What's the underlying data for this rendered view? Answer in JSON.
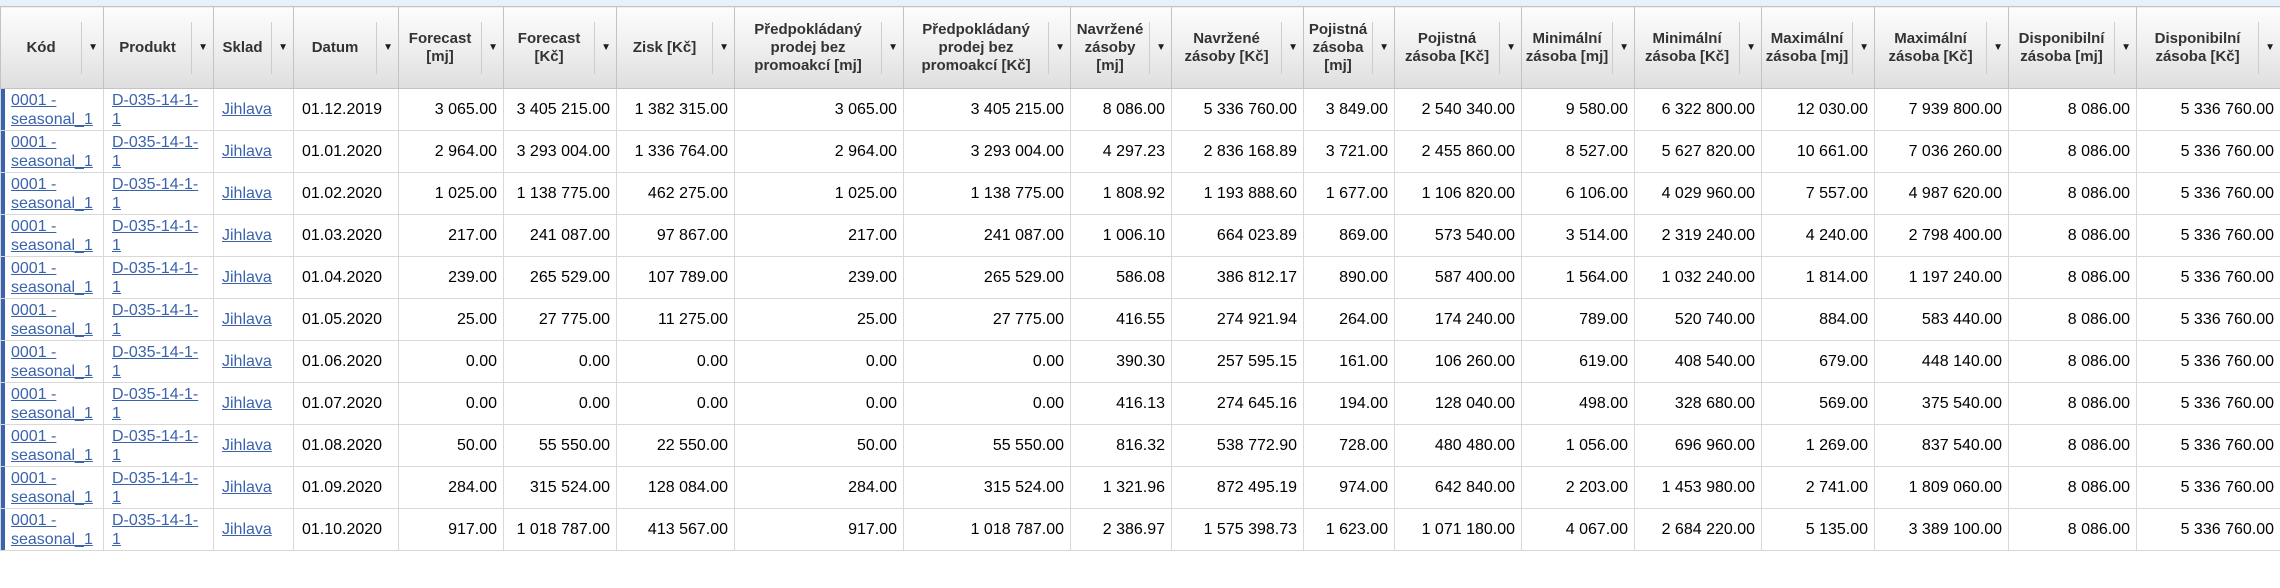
{
  "colors": {
    "link": "#3b62ad",
    "accent_bar": "#3b62ad",
    "header_text": "#333333",
    "top_strip": "#e6f2fb"
  },
  "grid": {
    "filter_icon": "▼",
    "columns": [
      "Kód",
      "Produkt",
      "Sklad",
      "Datum",
      "Forecast [mj]",
      "Forecast [Kč]",
      "Zisk [Kč]",
      "Předpokládaný prodej bez promoakcí [mj]",
      "Předpokládaný prodej bez promoakcí [Kč]",
      "Navržené zásoby [mj]",
      "Navržené zásoby [Kč]",
      "Pojistná zásoba [mj]",
      "Pojistná zásoba [Kč]",
      "Minimální zásoba [mj]",
      "Minimální zásoba [Kč]",
      "Maximální zásoba [mj]",
      "Maximální zásoba [Kč]",
      "Disponibilní zásoba [mj]",
      "Disponibilní zásoba [Kč]"
    ],
    "rows": [
      {
        "kod": "0001 - seasonal_1",
        "produkt": "D-035-14-1-1",
        "sklad": "Jihlava",
        "datum": "01.12.2019",
        "values": [
          "3 065.00",
          "3 405 215.00",
          "1 382 315.00",
          "3 065.00",
          "3 405 215.00",
          "8 086.00",
          "5 336 760.00",
          "3 849.00",
          "2 540 340.00",
          "9 580.00",
          "6 322 800.00",
          "12 030.00",
          "7 939 800.00",
          "8 086.00",
          "5 336 760.00"
        ]
      },
      {
        "kod": "0001 - seasonal_1",
        "produkt": "D-035-14-1-1",
        "sklad": "Jihlava",
        "datum": "01.01.2020",
        "values": [
          "2 964.00",
          "3 293 004.00",
          "1 336 764.00",
          "2 964.00",
          "3 293 004.00",
          "4 297.23",
          "2 836 168.89",
          "3 721.00",
          "2 455 860.00",
          "8 527.00",
          "5 627 820.00",
          "10 661.00",
          "7 036 260.00",
          "8 086.00",
          "5 336 760.00"
        ]
      },
      {
        "kod": "0001 - seasonal_1",
        "produkt": "D-035-14-1-1",
        "sklad": "Jihlava",
        "datum": "01.02.2020",
        "values": [
          "1 025.00",
          "1 138 775.00",
          "462 275.00",
          "1 025.00",
          "1 138 775.00",
          "1 808.92",
          "1 193 888.60",
          "1 677.00",
          "1 106 820.00",
          "6 106.00",
          "4 029 960.00",
          "7 557.00",
          "4 987 620.00",
          "8 086.00",
          "5 336 760.00"
        ]
      },
      {
        "kod": "0001 - seasonal_1",
        "produkt": "D-035-14-1-1",
        "sklad": "Jihlava",
        "datum": "01.03.2020",
        "values": [
          "217.00",
          "241 087.00",
          "97 867.00",
          "217.00",
          "241 087.00",
          "1 006.10",
          "664 023.89",
          "869.00",
          "573 540.00",
          "3 514.00",
          "2 319 240.00",
          "4 240.00",
          "2 798 400.00",
          "8 086.00",
          "5 336 760.00"
        ]
      },
      {
        "kod": "0001 - seasonal_1",
        "produkt": "D-035-14-1-1",
        "sklad": "Jihlava",
        "datum": "01.04.2020",
        "values": [
          "239.00",
          "265 529.00",
          "107 789.00",
          "239.00",
          "265 529.00",
          "586.08",
          "386 812.17",
          "890.00",
          "587 400.00",
          "1 564.00",
          "1 032 240.00",
          "1 814.00",
          "1 197 240.00",
          "8 086.00",
          "5 336 760.00"
        ]
      },
      {
        "kod": "0001 - seasonal_1",
        "produkt": "D-035-14-1-1",
        "sklad": "Jihlava",
        "datum": "01.05.2020",
        "values": [
          "25.00",
          "27 775.00",
          "11 275.00",
          "25.00",
          "27 775.00",
          "416.55",
          "274 921.94",
          "264.00",
          "174 240.00",
          "789.00",
          "520 740.00",
          "884.00",
          "583 440.00",
          "8 086.00",
          "5 336 760.00"
        ]
      },
      {
        "kod": "0001 - seasonal_1",
        "produkt": "D-035-14-1-1",
        "sklad": "Jihlava",
        "datum": "01.06.2020",
        "values": [
          "0.00",
          "0.00",
          "0.00",
          "0.00",
          "0.00",
          "390.30",
          "257 595.15",
          "161.00",
          "106 260.00",
          "619.00",
          "408 540.00",
          "679.00",
          "448 140.00",
          "8 086.00",
          "5 336 760.00"
        ]
      },
      {
        "kod": "0001 - seasonal_1",
        "produkt": "D-035-14-1-1",
        "sklad": "Jihlava",
        "datum": "01.07.2020",
        "values": [
          "0.00",
          "0.00",
          "0.00",
          "0.00",
          "0.00",
          "416.13",
          "274 645.16",
          "194.00",
          "128 040.00",
          "498.00",
          "328 680.00",
          "569.00",
          "375 540.00",
          "8 086.00",
          "5 336 760.00"
        ]
      },
      {
        "kod": "0001 - seasonal_1",
        "produkt": "D-035-14-1-1",
        "sklad": "Jihlava",
        "datum": "01.08.2020",
        "values": [
          "50.00",
          "55 550.00",
          "22 550.00",
          "50.00",
          "55 550.00",
          "816.32",
          "538 772.90",
          "728.00",
          "480 480.00",
          "1 056.00",
          "696 960.00",
          "1 269.00",
          "837 540.00",
          "8 086.00",
          "5 336 760.00"
        ]
      },
      {
        "kod": "0001 - seasonal_1",
        "produkt": "D-035-14-1-1",
        "sklad": "Jihlava",
        "datum": "01.09.2020",
        "values": [
          "284.00",
          "315 524.00",
          "128 084.00",
          "284.00",
          "315 524.00",
          "1 321.96",
          "872 495.19",
          "974.00",
          "642 840.00",
          "2 203.00",
          "1 453 980.00",
          "2 741.00",
          "1 809 060.00",
          "8 086.00",
          "5 336 760.00"
        ]
      },
      {
        "kod": "0001 - seasonal_1",
        "produkt": "D-035-14-1-1",
        "sklad": "Jihlava",
        "datum": "01.10.2020",
        "values": [
          "917.00",
          "1 018 787.00",
          "413 567.00",
          "917.00",
          "1 018 787.00",
          "2 386.97",
          "1 575 398.73",
          "1 623.00",
          "1 071 180.00",
          "4 067.00",
          "2 684 220.00",
          "5 135.00",
          "3 389 100.00",
          "8 086.00",
          "5 336 760.00"
        ]
      }
    ]
  }
}
